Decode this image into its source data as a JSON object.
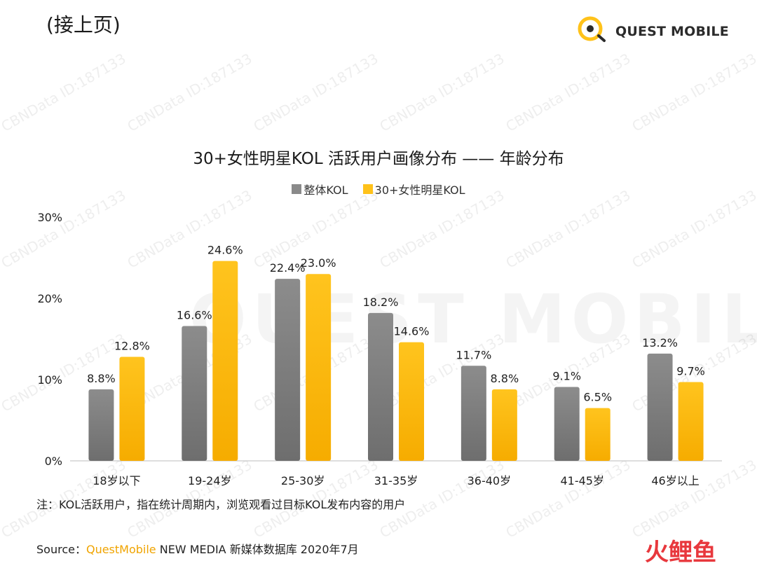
{
  "header": {
    "page_label": "(接上页)",
    "logo_text": "QUEST MOBILE"
  },
  "watermark": {
    "text": "CBNData ID:187133",
    "big_text": "QUEST MOBILE"
  },
  "chart_data": {
    "type": "bar",
    "title": "30+女性明星KOL 活跃用户画像分布 —— 年龄分布",
    "categories": [
      "18岁以下",
      "19-24岁",
      "25-30岁",
      "31-35岁",
      "36-40岁",
      "41-45岁",
      "46岁以上"
    ],
    "series": [
      {
        "name": "整体KOL",
        "values": [
          8.8,
          16.6,
          22.4,
          18.2,
          11.7,
          9.1,
          13.2
        ],
        "color": "#8a8a8a"
      },
      {
        "name": "30+女性明星KOL",
        "values": [
          12.8,
          24.6,
          23.0,
          14.6,
          8.8,
          6.5,
          9.7
        ],
        "color": "#ffc21a"
      }
    ],
    "value_labels": [
      [
        "8.8%",
        "16.6%",
        "22.4%",
        "18.2%",
        "11.7%",
        "9.1%",
        "13.2%"
      ],
      [
        "12.8%",
        "24.6%",
        "23.0%",
        "14.6%",
        "8.8%",
        "6.5%",
        "9.7%"
      ]
    ],
    "ylim": [
      0,
      30
    ],
    "yticks": [
      "0%",
      "10%",
      "20%",
      "30%"
    ],
    "ytick_values": [
      0,
      10,
      20,
      30
    ],
    "xlabel": "",
    "ylabel": "",
    "legend": "top-center",
    "grid": false
  },
  "footer": {
    "note": "注：KOL活跃用户，指在统计周期内，浏览观看过目标KOL发布内容的用户",
    "source_prefix": "Source：",
    "source_brand": "QuestMobile",
    "source_rest": " NEW MEDIA 新媒体数据库 2020年7月",
    "corner_logo": "火鲤鱼"
  }
}
